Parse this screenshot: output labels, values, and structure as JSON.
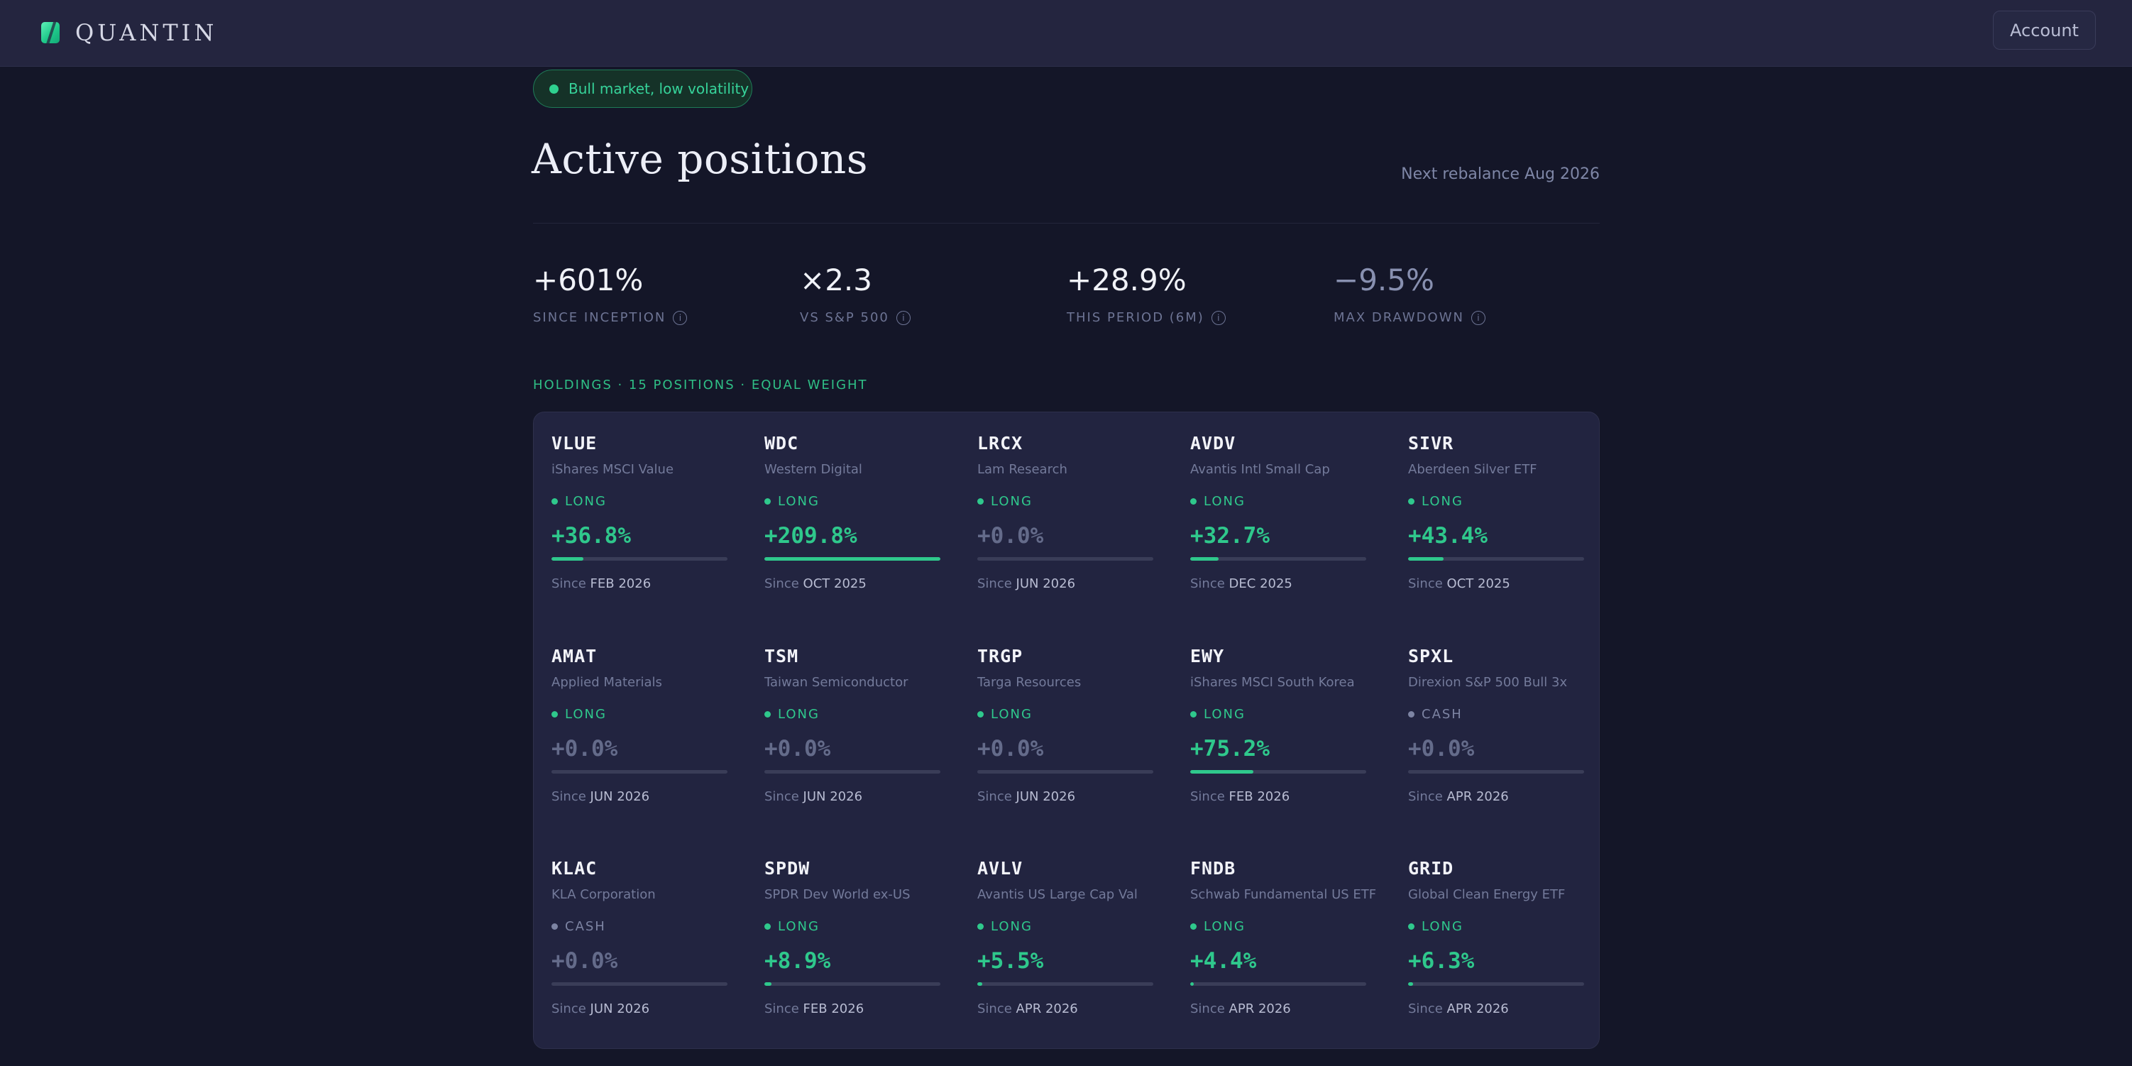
{
  "header": {
    "brand": "QUANTIN",
    "account_label": "Account"
  },
  "status_pill": {
    "label": "Bull market, low volatility",
    "color": "#2fd08f"
  },
  "page": {
    "title": "Active positions",
    "rebalance": "Next rebalance Aug 2026"
  },
  "stats": [
    {
      "value": "+601%",
      "label": "SINCE INCEPTION",
      "negative": false
    },
    {
      "value": "×2.3",
      "label": "VS S&P 500",
      "negative": false
    },
    {
      "value": "+28.9%",
      "label": "THIS PERIOD (6M)",
      "negative": false
    },
    {
      "value": "−9.5%",
      "label": "MAX DRAWDOWN",
      "negative": true
    }
  ],
  "holdings": {
    "label": "HOLDINGS · 15 POSITIONS · EQUAL WEIGHT",
    "since_prefix": "Since",
    "accent_color": "#2fc88c",
    "positions": [
      {
        "ticker": "VLUE",
        "name": "iShares MSCI Value",
        "side": "LONG",
        "return": "+36.8%",
        "progress": 0.18,
        "since": "FEB 2026"
      },
      {
        "ticker": "WDC",
        "name": "Western Digital",
        "side": "LONG",
        "return": "+209.8%",
        "progress": 1.0,
        "since": "OCT 2025"
      },
      {
        "ticker": "LRCX",
        "name": "Lam Research",
        "side": "LONG",
        "return": "+0.0%",
        "progress": 0.0,
        "since": "JUN 2026"
      },
      {
        "ticker": "AVDV",
        "name": "Avantis Intl Small Cap",
        "side": "LONG",
        "return": "+32.7%",
        "progress": 0.16,
        "since": "DEC 2025"
      },
      {
        "ticker": "SIVR",
        "name": "Aberdeen Silver ETF",
        "side": "LONG",
        "return": "+43.4%",
        "progress": 0.2,
        "since": "OCT 2025"
      },
      {
        "ticker": "AMAT",
        "name": "Applied Materials",
        "side": "LONG",
        "return": "+0.0%",
        "progress": 0.0,
        "since": "JUN 2026"
      },
      {
        "ticker": "TSM",
        "name": "Taiwan Semiconductor",
        "side": "LONG",
        "return": "+0.0%",
        "progress": 0.0,
        "since": "JUN 2026"
      },
      {
        "ticker": "TRGP",
        "name": "Targa Resources",
        "side": "LONG",
        "return": "+0.0%",
        "progress": 0.0,
        "since": "JUN 2026"
      },
      {
        "ticker": "EWY",
        "name": "iShares MSCI South Korea",
        "side": "LONG",
        "return": "+75.2%",
        "progress": 0.36,
        "since": "FEB 2026"
      },
      {
        "ticker": "SPXL",
        "name": "Direxion S&P 500 Bull 3x",
        "side": "CASH",
        "return": "+0.0%",
        "progress": 0.0,
        "since": "APR 2026"
      },
      {
        "ticker": "KLAC",
        "name": "KLA Corporation",
        "side": "CASH",
        "return": "+0.0%",
        "progress": 0.0,
        "since": "JUN 2026"
      },
      {
        "ticker": "SPDW",
        "name": "SPDR Dev World ex-US",
        "side": "LONG",
        "return": "+8.9%",
        "progress": 0.04,
        "since": "FEB 2026"
      },
      {
        "ticker": "AVLV",
        "name": "Avantis US Large Cap Val",
        "side": "LONG",
        "return": "+5.5%",
        "progress": 0.03,
        "since": "APR 2026"
      },
      {
        "ticker": "FNDB",
        "name": "Schwab Fundamental US ETF",
        "side": "LONG",
        "return": "+4.4%",
        "progress": 0.02,
        "since": "APR 2026"
      },
      {
        "ticker": "GRID",
        "name": "Global Clean Energy ETF",
        "side": "LONG",
        "return": "+6.3%",
        "progress": 0.03,
        "since": "APR 2026"
      }
    ]
  }
}
